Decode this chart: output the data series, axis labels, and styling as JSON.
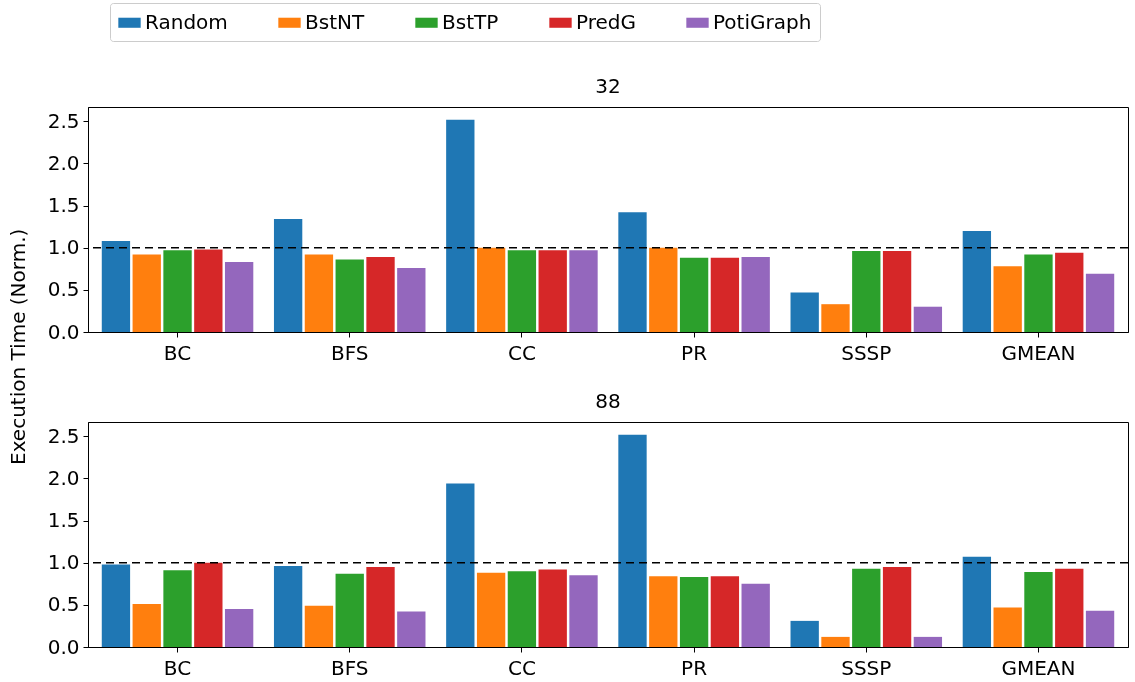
{
  "chart_data": [
    {
      "type": "bar",
      "title": "32",
      "ylabel": "Execution Time (Norm.)",
      "categories": [
        "BC",
        "BFS",
        "CC",
        "PR",
        "SSSP",
        "GMEAN"
      ],
      "series": [
        {
          "name": "Random",
          "color": "#1f77b4",
          "values": [
            1.08,
            1.34,
            2.52,
            1.42,
            0.47,
            1.2
          ]
        },
        {
          "name": "BstNT",
          "color": "#ff7f0e",
          "values": [
            0.92,
            0.92,
            1.0,
            1.0,
            0.33,
            0.78
          ]
        },
        {
          "name": "BstTP",
          "color": "#2ca02c",
          "values": [
            0.97,
            0.86,
            0.97,
            0.88,
            0.96,
            0.92
          ]
        },
        {
          "name": "PredG",
          "color": "#d62728",
          "values": [
            0.98,
            0.89,
            0.97,
            0.88,
            0.96,
            0.94
          ]
        },
        {
          "name": "PotiGraph",
          "color": "#9467bd",
          "values": [
            0.83,
            0.76,
            0.97,
            0.89,
            0.3,
            0.69
          ]
        }
      ],
      "ylim": [
        0,
        2.67
      ],
      "yticks": [
        {
          "value": 0,
          "label": "0.0"
        },
        0.5,
        {
          "value": 1,
          "label": "1.0"
        },
        1.5,
        {
          "value": 2,
          "label": "2.0"
        },
        2.5
      ],
      "grid": false,
      "legend": "top",
      "ref_lines": [
        {
          "axis": "y",
          "value": 1,
          "color": "#000000",
          "line_style": "dashed"
        }
      ]
    },
    {
      "type": "bar",
      "title": "88",
      "categories": [
        "BC",
        "BFS",
        "CC",
        "PR",
        "SSSP",
        "GMEAN"
      ],
      "series": [
        {
          "color": "#1f77b4",
          "values": [
            0.98,
            0.96,
            1.94,
            2.52,
            0.31,
            1.07
          ]
        },
        {
          "color": "#ff7f0e",
          "values": [
            0.51,
            0.49,
            0.88,
            0.84,
            0.12,
            0.47
          ]
        },
        {
          "color": "#2ca02c",
          "values": [
            0.91,
            0.87,
            0.9,
            0.83,
            0.93,
            0.89
          ]
        },
        {
          "color": "#d62728",
          "values": [
            1.0,
            0.95,
            0.92,
            0.84,
            0.95,
            0.93
          ]
        },
        {
          "color": "#9467bd",
          "values": [
            0.45,
            0.42,
            0.85,
            0.75,
            0.12,
            0.43
          ]
        }
      ],
      "ylim": [
        0,
        2.67
      ],
      "yticks": [
        {
          "value": 0,
          "label": "0.0"
        },
        0.5,
        {
          "value": 1,
          "label": "1.0"
        },
        1.5,
        {
          "value": 2,
          "label": "2.0"
        },
        2.5
      ],
      "grid": false,
      "ref_lines": [
        {
          "axis": "y",
          "value": 1,
          "color": "#000000",
          "line_style": "dashed"
        }
      ]
    }
  ]
}
